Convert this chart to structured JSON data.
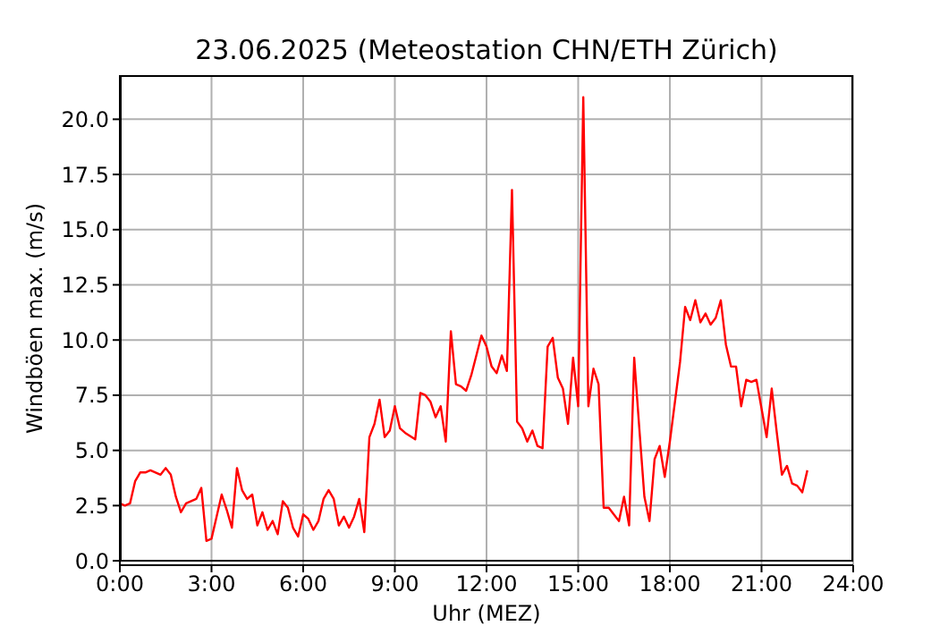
{
  "chart_data": {
    "type": "line",
    "title": "23.06.2025  (Meteostation CHN/ETH Zürich)",
    "xlabel": "Uhr (MEZ)",
    "ylabel": "Windböen max. (m/s)",
    "x": [
      0,
      0.1667,
      0.3333,
      0.5,
      0.6667,
      0.8333,
      1,
      1.1667,
      1.3333,
      1.5,
      1.6667,
      1.8333,
      2,
      2.1667,
      2.3333,
      2.5,
      2.6667,
      2.8333,
      3,
      3.1667,
      3.3333,
      3.5,
      3.6667,
      3.8333,
      4,
      4.1667,
      4.3333,
      4.5,
      4.6667,
      4.8333,
      5,
      5.1667,
      5.3333,
      5.5,
      5.6667,
      5.8333,
      6,
      6.1667,
      6.3333,
      6.5,
      6.6667,
      6.8333,
      7,
      7.1667,
      7.3333,
      7.5,
      7.6667,
      7.8333,
      8,
      8.1667,
      8.3333,
      8.5,
      8.6667,
      8.8333,
      9,
      9.1667,
      9.3333,
      9.6667,
      9.8333,
      10,
      10.1667,
      10.3333,
      10.5,
      10.6667,
      10.8333,
      11,
      11.1667,
      11.3333,
      11.5,
      11.6667,
      11.8333,
      12,
      12.1667,
      12.3333,
      12.5,
      12.6667,
      12.8333,
      13,
      13.1667,
      13.3333,
      13.5,
      13.6667,
      13.8333,
      14,
      14.1667,
      14.3333,
      14.5,
      14.6667,
      14.8333,
      15,
      15.1667,
      15.3333,
      15.5,
      15.6667,
      15.8333,
      16,
      16.1667,
      16.3333,
      16.5,
      16.6667,
      16.8333,
      17,
      17.1667,
      17.3333,
      17.5,
      17.6667,
      17.8333,
      18,
      18.3333,
      18.5,
      18.6667,
      18.8333,
      19,
      19.1667,
      19.3333,
      19.5,
      19.6667,
      19.8333,
      20,
      20.1667,
      20.3333,
      20.5,
      20.6667,
      20.8333,
      21,
      21.1667,
      21.3333,
      21.5,
      21.6667,
      21.8333,
      22,
      22.1667,
      22.3333,
      22.5
    ],
    "series": [
      {
        "color": "#ff0000",
        "values": [
          2.6,
          2.5,
          2.6,
          3.6,
          4.0,
          4.0,
          4.1,
          4.0,
          3.9,
          4.2,
          3.9,
          2.9,
          2.2,
          2.6,
          2.7,
          2.8,
          3.3,
          0.9,
          1.0,
          2.0,
          3.0,
          2.3,
          1.5,
          4.2,
          3.2,
          2.8,
          3.0,
          1.6,
          2.2,
          1.4,
          1.8,
          1.2,
          2.7,
          2.4,
          1.5,
          1.1,
          2.1,
          1.9,
          1.4,
          1.8,
          2.8,
          3.2,
          2.8,
          1.6,
          2.0,
          1.5,
          2.0,
          2.8,
          1.3,
          5.6,
          6.2,
          7.3,
          5.6,
          5.9,
          7.0,
          6.0,
          5.8,
          5.5,
          7.6,
          7.5,
          7.2,
          6.5,
          7.0,
          5.4,
          10.4,
          8.0,
          7.9,
          7.7,
          8.4,
          9.3,
          10.2,
          9.7,
          8.8,
          8.5,
          9.3,
          8.6,
          16.8,
          6.3,
          6.0,
          5.4,
          5.9,
          5.2,
          5.1,
          9.7,
          10.1,
          8.3,
          7.8,
          6.2,
          9.2,
          7.0,
          21.0,
          7.0,
          8.7,
          8.0,
          2.4,
          2.4,
          2.1,
          1.8,
          2.9,
          1.6,
          9.2,
          6.0,
          2.9,
          1.8,
          4.6,
          5.2,
          3.8,
          5.4,
          9.0,
          11.5,
          10.9,
          11.8,
          10.8,
          11.2,
          10.7,
          11.0,
          11.8,
          9.8,
          8.8,
          8.8,
          7.0,
          8.2,
          8.1,
          8.2,
          6.9,
          5.6,
          7.8,
          5.8,
          3.9,
          4.3,
          3.5,
          3.4,
          3.1,
          4.1
        ]
      }
    ],
    "xlim": [
      0,
      24
    ],
    "xticks": [
      {
        "value": 0,
        "label": "0:00"
      },
      {
        "value": 3,
        "label": "3:00"
      },
      {
        "value": 6,
        "label": "6:00"
      },
      {
        "value": 9,
        "label": "9:00"
      },
      {
        "value": 12,
        "label": "12:00"
      },
      {
        "value": 15,
        "label": "15:00"
      },
      {
        "value": 18,
        "label": "18:00"
      },
      {
        "value": 21,
        "label": "21:00"
      },
      {
        "value": 24,
        "label": "24:00"
      }
    ],
    "ylim": [
      -0.2,
      22
    ],
    "yticks": [
      {
        "value": 0,
        "label": "0.0"
      },
      2.5,
      {
        "value": 5,
        "label": "5.0"
      },
      7.5,
      {
        "value": 10,
        "label": "10.0"
      },
      12.5,
      {
        "value": 15,
        "label": "15.0"
      },
      17.5,
      {
        "value": 20,
        "label": "20.0"
      }
    ],
    "grid": true,
    "legend": false,
    "marker": "none",
    "line_style": "solid"
  }
}
